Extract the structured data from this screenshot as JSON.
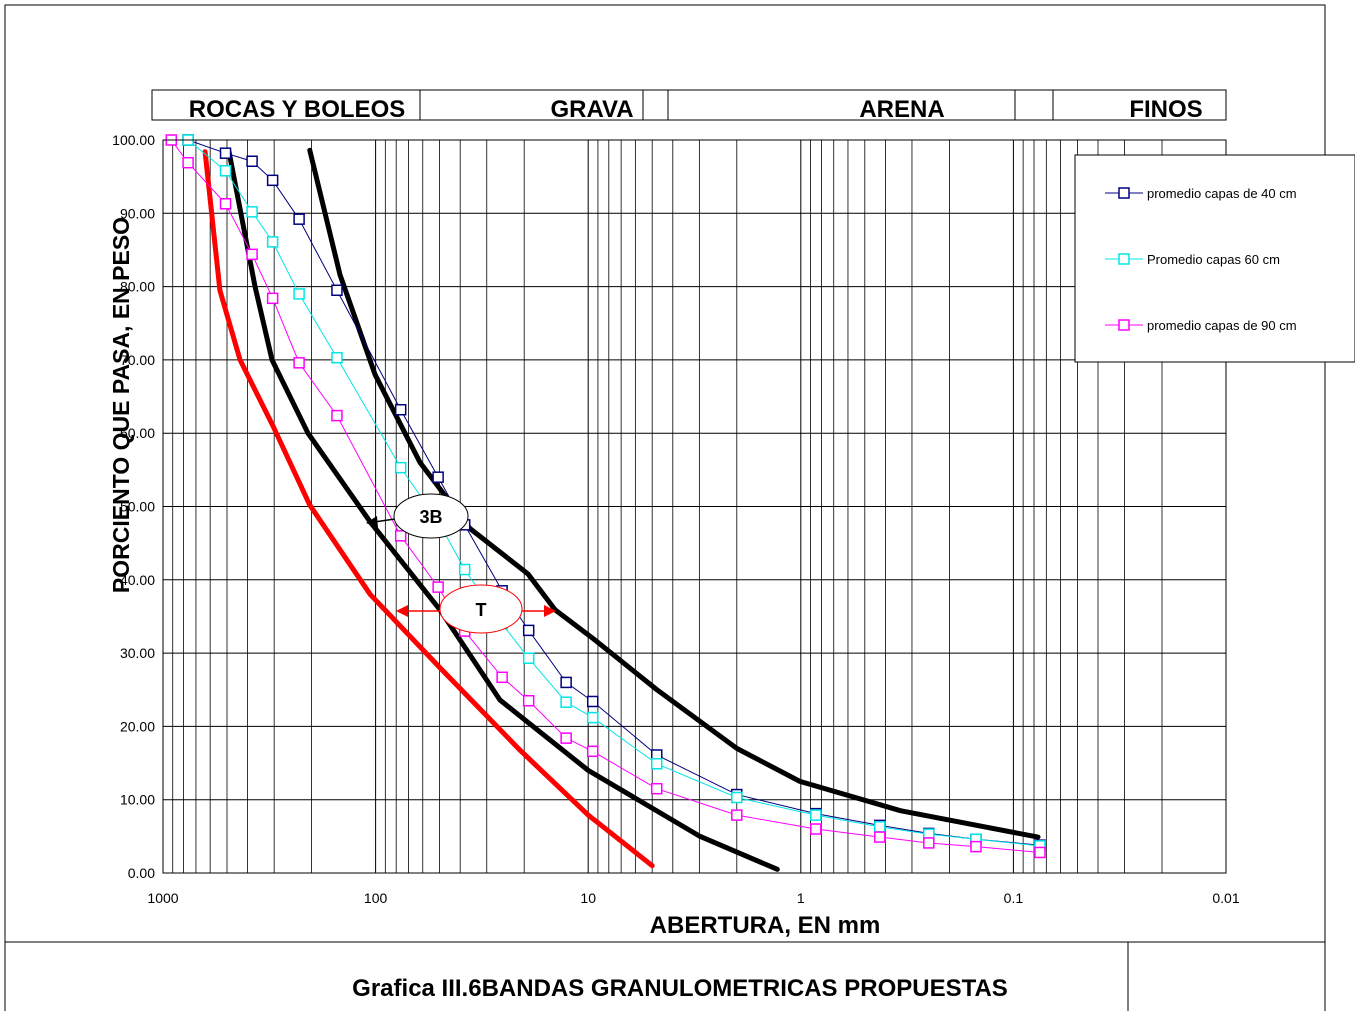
{
  "chart_data": {
    "type": "line",
    "title": "Grafica III.6BANDAS GRANULOMETRICAS PROPUESTAS",
    "x_label": "ABERTURA, EN mm",
    "y_label": "PORCIENTO QUE PASA, EN PESO",
    "zones": [
      "ROCAS Y BOLEOS",
      "GRAVA",
      "ARENA",
      "FINOS"
    ],
    "annotations": [
      "3B",
      "T"
    ],
    "x_log": true,
    "x_reversed": true,
    "grid": true,
    "minor_grid": true,
    "legend": "upper right",
    "xlim": [
      1000,
      0.01
    ],
    "xticks": [
      1000,
      100,
      10,
      1,
      0.1,
      0.01
    ],
    "ylim": [
      0,
      100
    ],
    "yticks": [
      {
        "value": 0,
        "label": "0.00"
      },
      {
        "value": 10,
        "label": "10.00"
      },
      {
        "value": 20,
        "label": "20.00"
      },
      {
        "value": 30,
        "label": "30.00"
      },
      {
        "value": 40,
        "label": "40.00"
      },
      {
        "value": 50,
        "label": "50.00"
      },
      {
        "value": 60,
        "label": "60.00"
      },
      {
        "value": 70,
        "label": "70.00"
      },
      {
        "value": 80,
        "label": "80.00"
      },
      {
        "value": 90,
        "label": "90.00"
      },
      {
        "value": 100,
        "label": "100.00"
      }
    ],
    "x": [
      914,
      762,
      508,
      381,
      305,
      229,
      152,
      76.2,
      50.8,
      38.1,
      25.4,
      19.05,
      12.7,
      9.52,
      4.76,
      2.0,
      0.85,
      0.425,
      0.25,
      0.15,
      0.075
    ],
    "series": [
      {
        "name": "promedio capas de 40 cm",
        "color": "#000080",
        "values": [
          null,
          100,
          98.2,
          97.1,
          94.5,
          89.2,
          79.5,
          63.2,
          54,
          47.5,
          38.5,
          33.1,
          26,
          23.4,
          16.1,
          10.7,
          8.1,
          6.5,
          5.4,
          4.6,
          3.8
        ]
      },
      {
        "name": "Promedio capas 60 cm",
        "color": "#00e5e5",
        "values": [
          null,
          100,
          95.8,
          90.2,
          86.1,
          79,
          70.3,
          55.3,
          48,
          41.4,
          34,
          29.3,
          23.3,
          21.2,
          14.9,
          10.3,
          7.9,
          6.3,
          5.3,
          4.6,
          3.7
        ]
      },
      {
        "name": "promedio capas de 90 cm",
        "color": "#ff00ff",
        "values": [
          100,
          96.9,
          91.3,
          84.4,
          78.4,
          69.6,
          62.4,
          46,
          39,
          33,
          26.7,
          23.5,
          18.4,
          16.6,
          11.5,
          7.9,
          6.0,
          4.9,
          4.1,
          3.6,
          2.8
        ]
      }
    ],
    "bands": [
      {
        "color": "#000000",
        "x": [
          490,
          369,
          307,
          208,
          106,
          49.8,
          26,
          10,
          2.98,
          1.29
        ],
        "values": [
          98.5,
          80,
          70,
          60,
          47.9,
          35.9,
          23.6,
          14,
          5,
          0.5
        ]
      },
      {
        "color": "#000000",
        "x": [
          204,
          147,
          100.6,
          61.8,
          36,
          19.2,
          14.3,
          9.5,
          4.75,
          2.0,
          1.01,
          0.34,
          0.0766
        ],
        "values": [
          98.6,
          81.6,
          68,
          56,
          47,
          40.8,
          35.9,
          32,
          25,
          17,
          12.5,
          8.5,
          4.9
        ]
      },
      {
        "color": "#ff0000",
        "x": [
          634,
          540,
          434,
          304,
          204,
          106,
          49.8,
          21,
          10,
          5.0
        ],
        "values": [
          98.4,
          79.5,
          70,
          61,
          50.2,
          38,
          28,
          16.8,
          7.9,
          1.0
        ]
      }
    ]
  }
}
